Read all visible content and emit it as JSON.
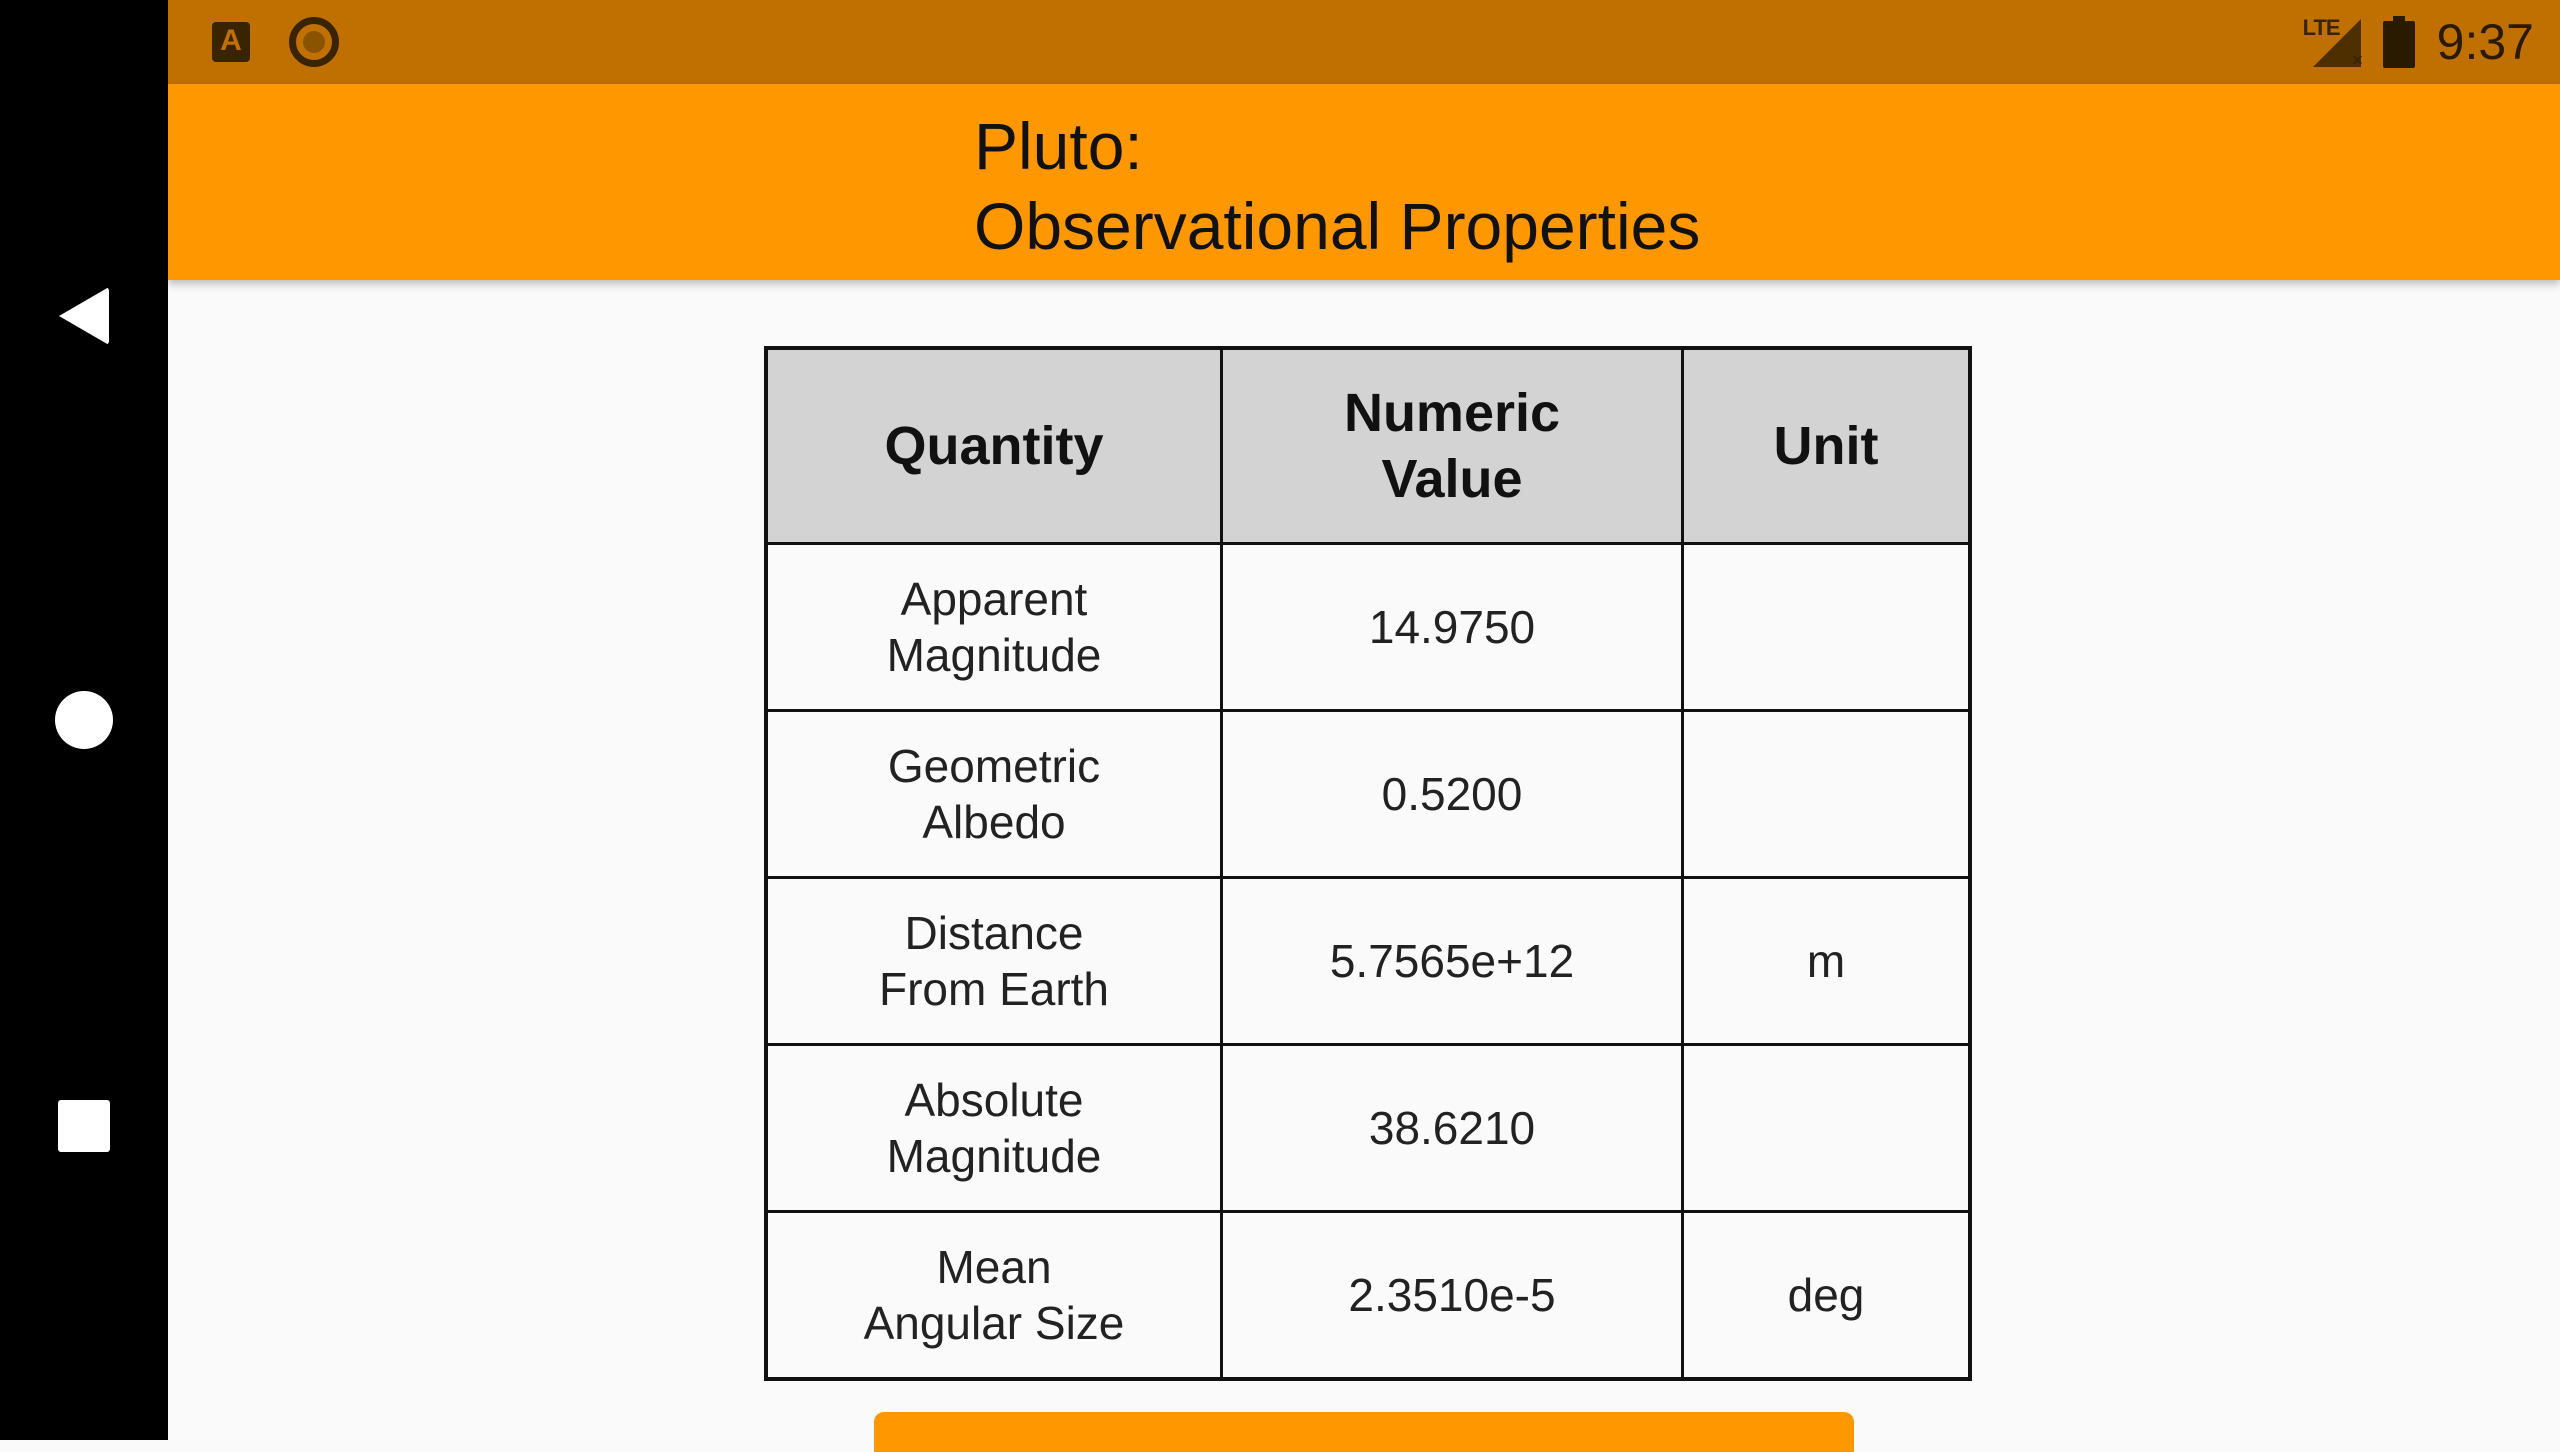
{
  "status_bar": {
    "app_icons": [
      "autofill-a-icon",
      "ring-app-icon"
    ],
    "network": "LTE",
    "time": "9:37"
  },
  "app_bar": {
    "title": "Pluto:\nObservational Properties"
  },
  "table": {
    "headers": [
      "Quantity",
      "Numeric\nValue",
      "Unit"
    ],
    "rows": [
      {
        "quantity": "Apparent\nMagnitude",
        "value": "14.9750",
        "unit": ""
      },
      {
        "quantity": "Geometric\nAlbedo",
        "value": "0.5200",
        "unit": ""
      },
      {
        "quantity": "Distance\nFrom Earth",
        "value": "5.7565e+12",
        "unit": "m"
      },
      {
        "quantity": "Absolute\nMagnitude",
        "value": "38.6210",
        "unit": ""
      },
      {
        "quantity": "Mean\nAngular Size",
        "value": "2.3510e-5",
        "unit": "deg"
      }
    ]
  },
  "nav": {
    "back": "back-icon",
    "home": "home-icon",
    "recents": "recents-icon"
  },
  "colors": {
    "status_bar": "#bf7000",
    "app_bar": "#ff9800",
    "header_cell": "#d3d3d3",
    "background": "#fafafa"
  }
}
